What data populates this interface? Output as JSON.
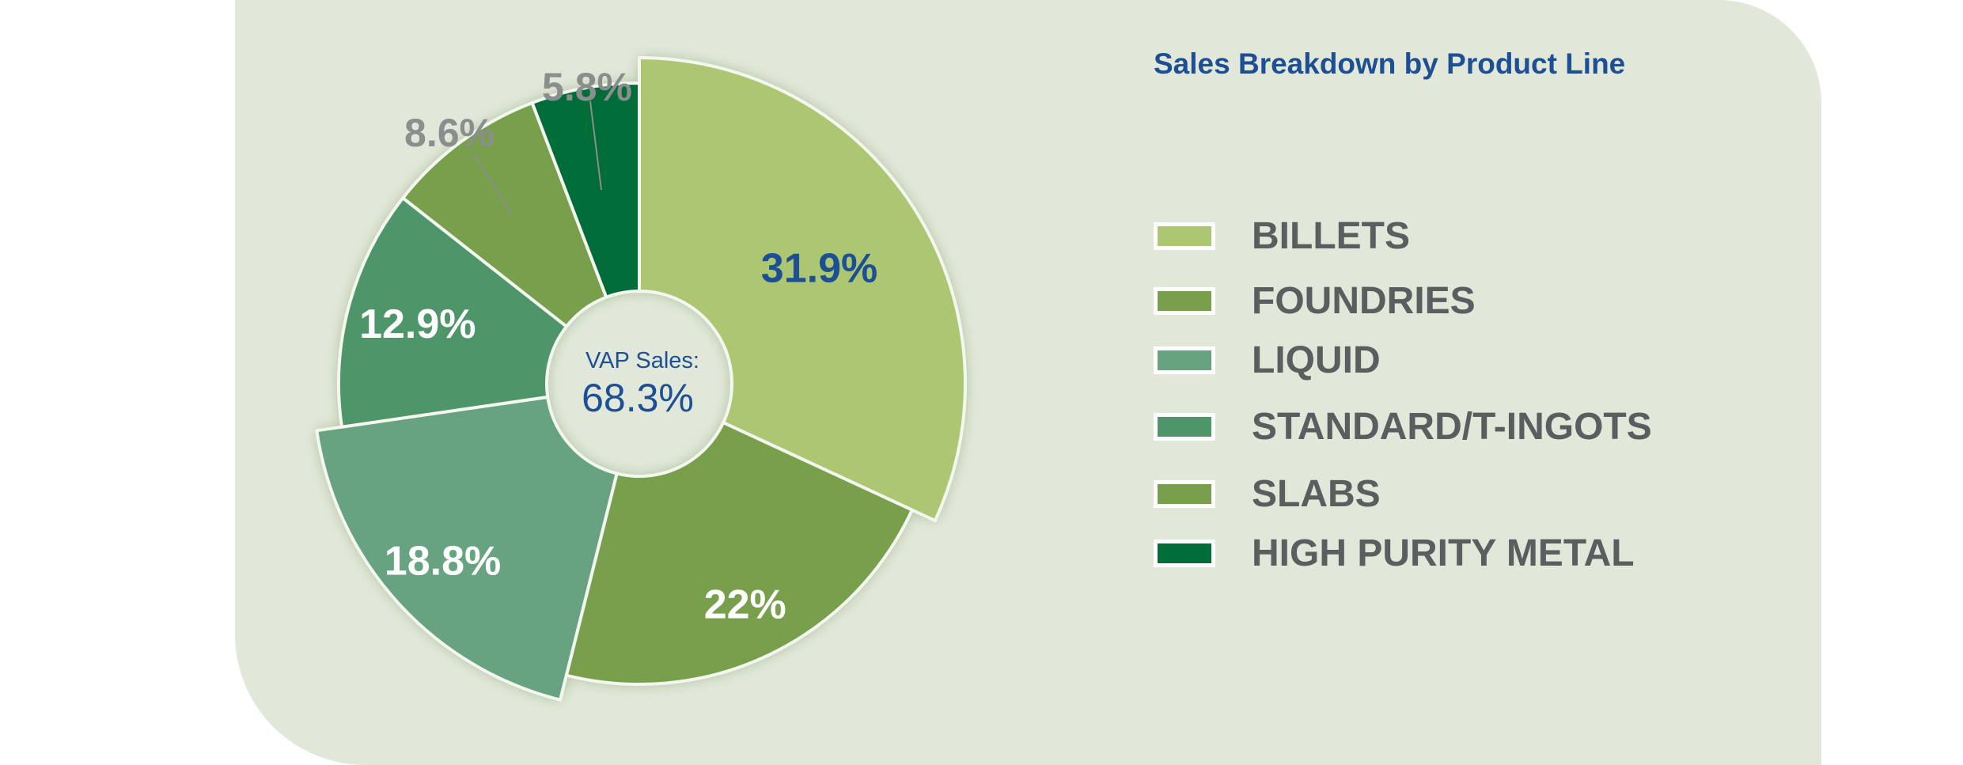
{
  "chart_data": {
    "type": "pie",
    "title": "Sales Breakdown by Product Line",
    "center_label": "VAP Sales:",
    "center_value": "68.3%",
    "slices": [
      {
        "name": "BILLETS",
        "value": 31.9,
        "label": "31.9%",
        "color": "#adc672",
        "label_color": "#1d4f94",
        "exploded": true
      },
      {
        "name": "FOUNDRIES",
        "value": 22.0,
        "label": "22%",
        "color": "#789f4c",
        "label_color": "#ffffff",
        "exploded": false
      },
      {
        "name": "LIQUID",
        "value": 18.8,
        "label": "18.8%",
        "color": "#67a381",
        "label_color": "#ffffff",
        "exploded": true
      },
      {
        "name": "STANDARD/T-INGOTS",
        "value": 12.9,
        "label": "12.9%",
        "color": "#4e9669",
        "label_color": "#ffffff",
        "exploded": false
      },
      {
        "name": "SLABS",
        "value": 8.6,
        "label": "8.6%",
        "color": "#789f4c",
        "label_color": "#8a8f8e",
        "exploded": false
      },
      {
        "name": "HIGH PURITY METAL",
        "value": 5.8,
        "label": "5.8%",
        "color": "#006d38",
        "label_color": "#8a8f8e",
        "exploded": false
      }
    ],
    "legend_position": "right"
  }
}
